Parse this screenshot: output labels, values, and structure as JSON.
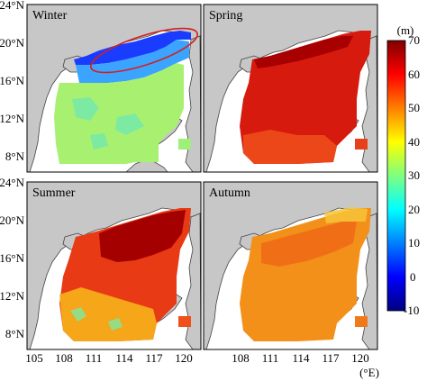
{
  "panels": [
    {
      "id": "winter",
      "title": "Winter"
    },
    {
      "id": "spring",
      "title": "Spring"
    },
    {
      "id": "summer",
      "title": "Summer"
    },
    {
      "id": "autumn",
      "title": "Autumn"
    }
  ],
  "axes": {
    "y_ticks": [
      "24°N",
      "20°N",
      "16°N",
      "12°N",
      "8°N"
    ],
    "x_ticks_left": [
      "105",
      "108",
      "111",
      "114",
      "117",
      "120"
    ],
    "x_ticks_right": [
      "108",
      "111",
      "114",
      "117",
      "120"
    ],
    "x_unit": "(°E)"
  },
  "colorbar": {
    "unit": "(m)",
    "ticks": [
      "70",
      "60",
      "50",
      "40",
      "30",
      "20",
      "10",
      "0",
      "-10"
    ],
    "min": -10,
    "max": 70,
    "colors": [
      "#00007f",
      "#0000ff",
      "#007fff",
      "#00ffff",
      "#7fff7f",
      "#ffff00",
      "#ff7f00",
      "#ff0000",
      "#7f0000"
    ]
  },
  "colors": {
    "land": "#c7c7c7",
    "sea": "#ffffff",
    "highlight_ellipse": "#d42020",
    "frame": "#000000"
  }
}
